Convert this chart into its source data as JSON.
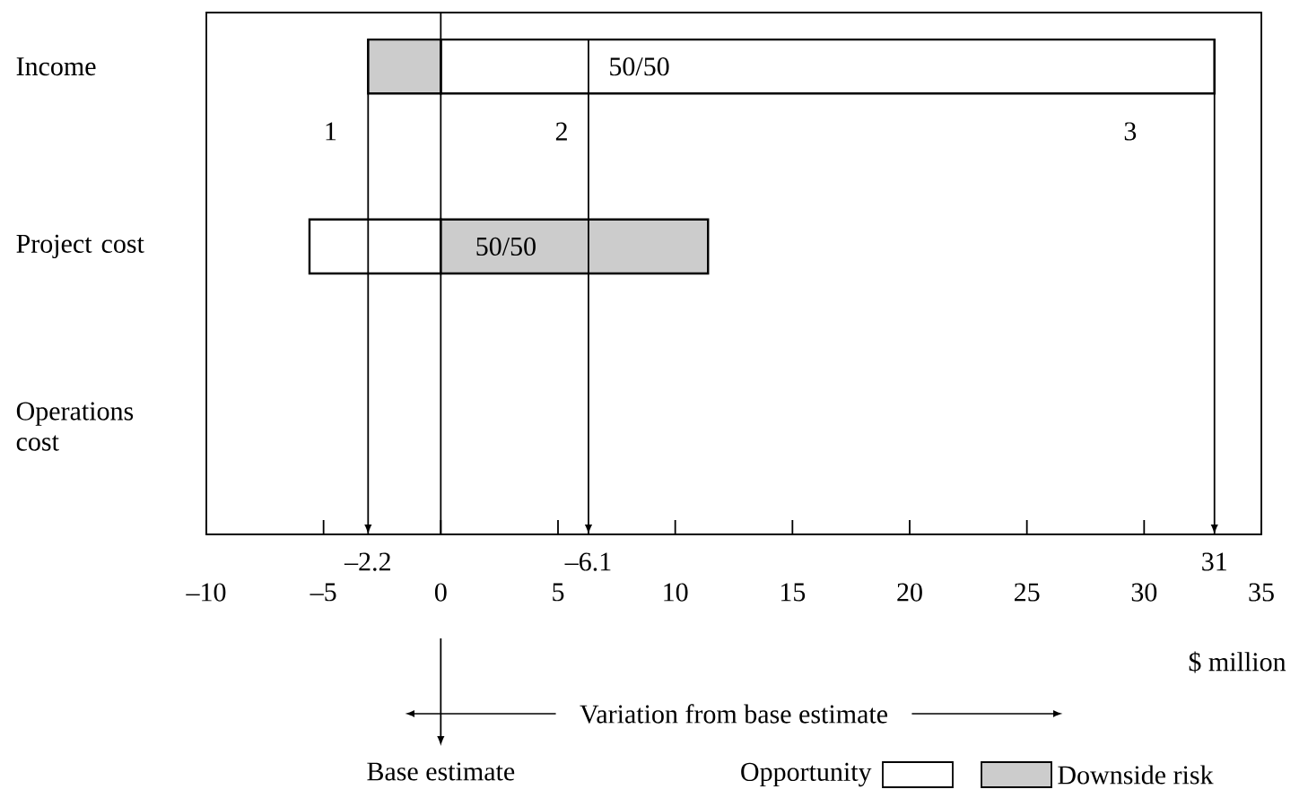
{
  "chart_data": {
    "type": "bar",
    "orientation": "horizontal",
    "categories": [
      "Income",
      "Project cost",
      "Operations cost"
    ],
    "series": [
      {
        "name": "Opportunity",
        "color": "#ffffff",
        "base": [
          0,
          -5.6,
          null
        ],
        "values": [
          33.0,
          5.6,
          null
        ]
      },
      {
        "name": "Downside risk",
        "color": "#cccccc",
        "base": [
          -3.1,
          0,
          null
        ],
        "values": [
          3.1,
          11.4,
          null
        ]
      }
    ],
    "xlim": [
      -10,
      35
    ],
    "xticks": [
      {
        "value": -10,
        "label": "–10"
      },
      {
        "value": -5,
        "label": "–5"
      },
      0,
      5,
      10,
      15,
      20,
      25,
      30,
      35
    ],
    "xlabel": "Variation from base estimate",
    "legend": "bottom right",
    "ref_lines": [
      {
        "axis": "x",
        "value": 0
      },
      {
        "axis": "x",
        "value": -3.1
      },
      {
        "axis": "x",
        "value": 6.3
      },
      {
        "axis": "x",
        "value": 33.0
      }
    ],
    "annotations": [
      "1",
      "2",
      "3",
      "50/50",
      "50/50",
      "–2.2",
      "–6.1",
      "31",
      "$ million",
      "Base estimate"
    ]
  }
}
